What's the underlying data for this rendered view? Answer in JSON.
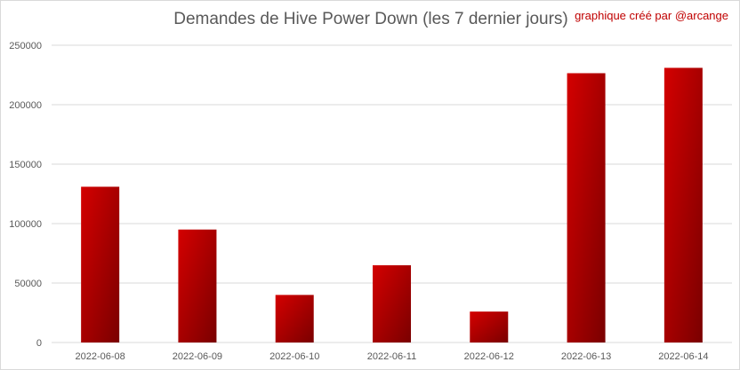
{
  "chart_data": {
    "type": "bar",
    "title": "Demandes de Hive Power Down (les 7 dernier jours)",
    "credit": "graphique créé par @arcange",
    "categories": [
      "2022-06-08",
      "2022-06-09",
      "2022-06-10",
      "2022-06-11",
      "2022-06-12",
      "2022-06-13",
      "2022-06-14"
    ],
    "values": [
      131000,
      95000,
      40000,
      65000,
      26000,
      226500,
      231000
    ],
    "xlabel": "",
    "ylabel": "",
    "ylim": [
      0,
      250000
    ],
    "yticks": [
      "0",
      "50000",
      "100000",
      "150000",
      "200000",
      "250000"
    ],
    "grid": true,
    "legend": "none",
    "colors": {
      "bar_light": "#d40000",
      "bar_dark": "#7a0000",
      "grid": "#d9d9d9",
      "text": "#595959",
      "credit": "#c00000"
    }
  }
}
